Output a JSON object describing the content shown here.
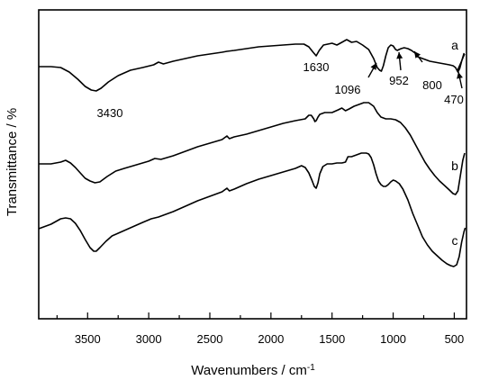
{
  "chart_data": {
    "type": "line",
    "title": "",
    "xlabel": "Wavenumbers / cm",
    "xlabel_superscript": "-1",
    "ylabel": "Transmittance / %",
    "xlim": [
      3900,
      400
    ],
    "x_reversed": true,
    "x_ticks": [
      3500,
      3000,
      2500,
      2000,
      1500,
      1000,
      500
    ],
    "y_ticks_labeled": false,
    "grid": false,
    "legend": "none",
    "series": [
      {
        "name": "a",
        "points": [
          [
            3900,
            74
          ],
          [
            3800,
            74
          ],
          [
            3720,
            75
          ],
          [
            3650,
            80
          ],
          [
            3580,
            88
          ],
          [
            3520,
            96
          ],
          [
            3470,
            100
          ],
          [
            3430,
            101
          ],
          [
            3390,
            98
          ],
          [
            3330,
            91
          ],
          [
            3250,
            84
          ],
          [
            3150,
            78
          ],
          [
            3050,
            75
          ],
          [
            2960,
            72
          ],
          [
            2920,
            69
          ],
          [
            2880,
            71
          ],
          [
            2800,
            68
          ],
          [
            2700,
            65
          ],
          [
            2600,
            62
          ],
          [
            2500,
            60
          ],
          [
            2400,
            58
          ],
          [
            2360,
            57
          ],
          [
            2300,
            56
          ],
          [
            2200,
            54
          ],
          [
            2100,
            52
          ],
          [
            2000,
            51
          ],
          [
            1900,
            50
          ],
          [
            1800,
            49
          ],
          [
            1730,
            49
          ],
          [
            1690,
            52
          ],
          [
            1655,
            58
          ],
          [
            1630,
            62
          ],
          [
            1605,
            56
          ],
          [
            1570,
            50
          ],
          [
            1500,
            48
          ],
          [
            1460,
            50
          ],
          [
            1420,
            47
          ],
          [
            1380,
            44
          ],
          [
            1340,
            47
          ],
          [
            1300,
            46
          ],
          [
            1250,
            50
          ],
          [
            1200,
            55
          ],
          [
            1160,
            65
          ],
          [
            1130,
            75
          ],
          [
            1110,
            78
          ],
          [
            1096,
            79
          ],
          [
            1080,
            73
          ],
          [
            1060,
            62
          ],
          [
            1040,
            53
          ],
          [
            1020,
            50
          ],
          [
            1000,
            51
          ],
          [
            980,
            55
          ],
          [
            965,
            56
          ],
          [
            952,
            55
          ],
          [
            935,
            54
          ],
          [
            910,
            53
          ],
          [
            880,
            54
          ],
          [
            850,
            56
          ],
          [
            820,
            59
          ],
          [
            800,
            63
          ],
          [
            780,
            64
          ],
          [
            760,
            65
          ],
          [
            740,
            66
          ],
          [
            700,
            68
          ],
          [
            660,
            69
          ],
          [
            620,
            70
          ],
          [
            580,
            71
          ],
          [
            540,
            72
          ],
          [
            510,
            73
          ],
          [
            490,
            75
          ],
          [
            470,
            80
          ],
          [
            455,
            76
          ],
          [
            440,
            68
          ],
          [
            420,
            59
          ]
        ]
      },
      {
        "name": "b",
        "points": [
          [
            3900,
            182
          ],
          [
            3800,
            182
          ],
          [
            3720,
            180
          ],
          [
            3680,
            178
          ],
          [
            3640,
            181
          ],
          [
            3600,
            186
          ],
          [
            3560,
            192
          ],
          [
            3520,
            198
          ],
          [
            3480,
            201
          ],
          [
            3440,
            203
          ],
          [
            3400,
            202
          ],
          [
            3340,
            196
          ],
          [
            3270,
            190
          ],
          [
            3200,
            187
          ],
          [
            3100,
            183
          ],
          [
            3000,
            179
          ],
          [
            2950,
            176
          ],
          [
            2900,
            177
          ],
          [
            2800,
            173
          ],
          [
            2700,
            168
          ],
          [
            2600,
            163
          ],
          [
            2500,
            159
          ],
          [
            2400,
            155
          ],
          [
            2360,
            151
          ],
          [
            2340,
            154
          ],
          [
            2300,
            152
          ],
          [
            2200,
            149
          ],
          [
            2100,
            145
          ],
          [
            2000,
            141
          ],
          [
            1900,
            137
          ],
          [
            1800,
            134
          ],
          [
            1720,
            132
          ],
          [
            1690,
            128
          ],
          [
            1670,
            128
          ],
          [
            1650,
            132
          ],
          [
            1640,
            135
          ],
          [
            1630,
            134
          ],
          [
            1615,
            130
          ],
          [
            1600,
            127
          ],
          [
            1560,
            125
          ],
          [
            1500,
            125
          ],
          [
            1450,
            122
          ],
          [
            1420,
            120
          ],
          [
            1390,
            123
          ],
          [
            1360,
            121
          ],
          [
            1320,
            118
          ],
          [
            1280,
            116
          ],
          [
            1240,
            114
          ],
          [
            1200,
            114
          ],
          [
            1160,
            118
          ],
          [
            1130,
            125
          ],
          [
            1100,
            130
          ],
          [
            1060,
            132
          ],
          [
            1020,
            132
          ],
          [
            980,
            133
          ],
          [
            940,
            136
          ],
          [
            900,
            142
          ],
          [
            860,
            150
          ],
          [
            820,
            160
          ],
          [
            780,
            170
          ],
          [
            740,
            180
          ],
          [
            700,
            188
          ],
          [
            660,
            195
          ],
          [
            620,
            201
          ],
          [
            580,
            206
          ],
          [
            540,
            211
          ],
          [
            510,
            215
          ],
          [
            490,
            216
          ],
          [
            470,
            212
          ],
          [
            450,
            195
          ],
          [
            430,
            178
          ],
          [
            415,
            170
          ]
        ]
      },
      {
        "name": "c",
        "points": [
          [
            3900,
            254
          ],
          [
            3800,
            249
          ],
          [
            3720,
            243
          ],
          [
            3680,
            242
          ],
          [
            3640,
            243
          ],
          [
            3600,
            248
          ],
          [
            3560,
            256
          ],
          [
            3520,
            266
          ],
          [
            3480,
            275
          ],
          [
            3450,
            279
          ],
          [
            3430,
            279
          ],
          [
            3400,
            275
          ],
          [
            3350,
            268
          ],
          [
            3300,
            262
          ],
          [
            3250,
            259
          ],
          [
            3150,
            253
          ],
          [
            3050,
            247
          ],
          [
            2980,
            243
          ],
          [
            2920,
            241
          ],
          [
            2880,
            239
          ],
          [
            2800,
            235
          ],
          [
            2700,
            229
          ],
          [
            2600,
            223
          ],
          [
            2500,
            218
          ],
          [
            2400,
            213
          ],
          [
            2360,
            209
          ],
          [
            2340,
            212
          ],
          [
            2300,
            210
          ],
          [
            2200,
            204
          ],
          [
            2100,
            199
          ],
          [
            2000,
            195
          ],
          [
            1900,
            191
          ],
          [
            1800,
            187
          ],
          [
            1750,
            184
          ],
          [
            1720,
            186
          ],
          [
            1690,
            192
          ],
          [
            1665,
            200
          ],
          [
            1645,
            207
          ],
          [
            1630,
            209
          ],
          [
            1615,
            203
          ],
          [
            1600,
            193
          ],
          [
            1575,
            185
          ],
          [
            1540,
            182
          ],
          [
            1500,
            182
          ],
          [
            1460,
            181
          ],
          [
            1420,
            181
          ],
          [
            1390,
            180
          ],
          [
            1370,
            174
          ],
          [
            1340,
            174
          ],
          [
            1300,
            172
          ],
          [
            1260,
            170
          ],
          [
            1220,
            170
          ],
          [
            1200,
            171
          ],
          [
            1180,
            175
          ],
          [
            1160,
            183
          ],
          [
            1140,
            193
          ],
          [
            1120,
            201
          ],
          [
            1100,
            205
          ],
          [
            1080,
            207
          ],
          [
            1060,
            207
          ],
          [
            1040,
            205
          ],
          [
            1020,
            202
          ],
          [
            1000,
            200
          ],
          [
            980,
            201
          ],
          [
            950,
            204
          ],
          [
            920,
            210
          ],
          [
            880,
            222
          ],
          [
            840,
            237
          ],
          [
            800,
            250
          ],
          [
            760,
            263
          ],
          [
            720,
            272
          ],
          [
            680,
            279
          ],
          [
            640,
            284
          ],
          [
            600,
            289
          ],
          [
            560,
            293
          ],
          [
            530,
            295
          ],
          [
            505,
            296
          ],
          [
            480,
            294
          ],
          [
            460,
            285
          ],
          [
            440,
            269
          ],
          [
            420,
            257
          ],
          [
            410,
            253
          ]
        ]
      }
    ],
    "peak_annotations": [
      "3430",
      "1630",
      "1096",
      "952",
      "800",
      "470"
    ],
    "curve_labels": [
      "a",
      "b",
      "c"
    ]
  }
}
